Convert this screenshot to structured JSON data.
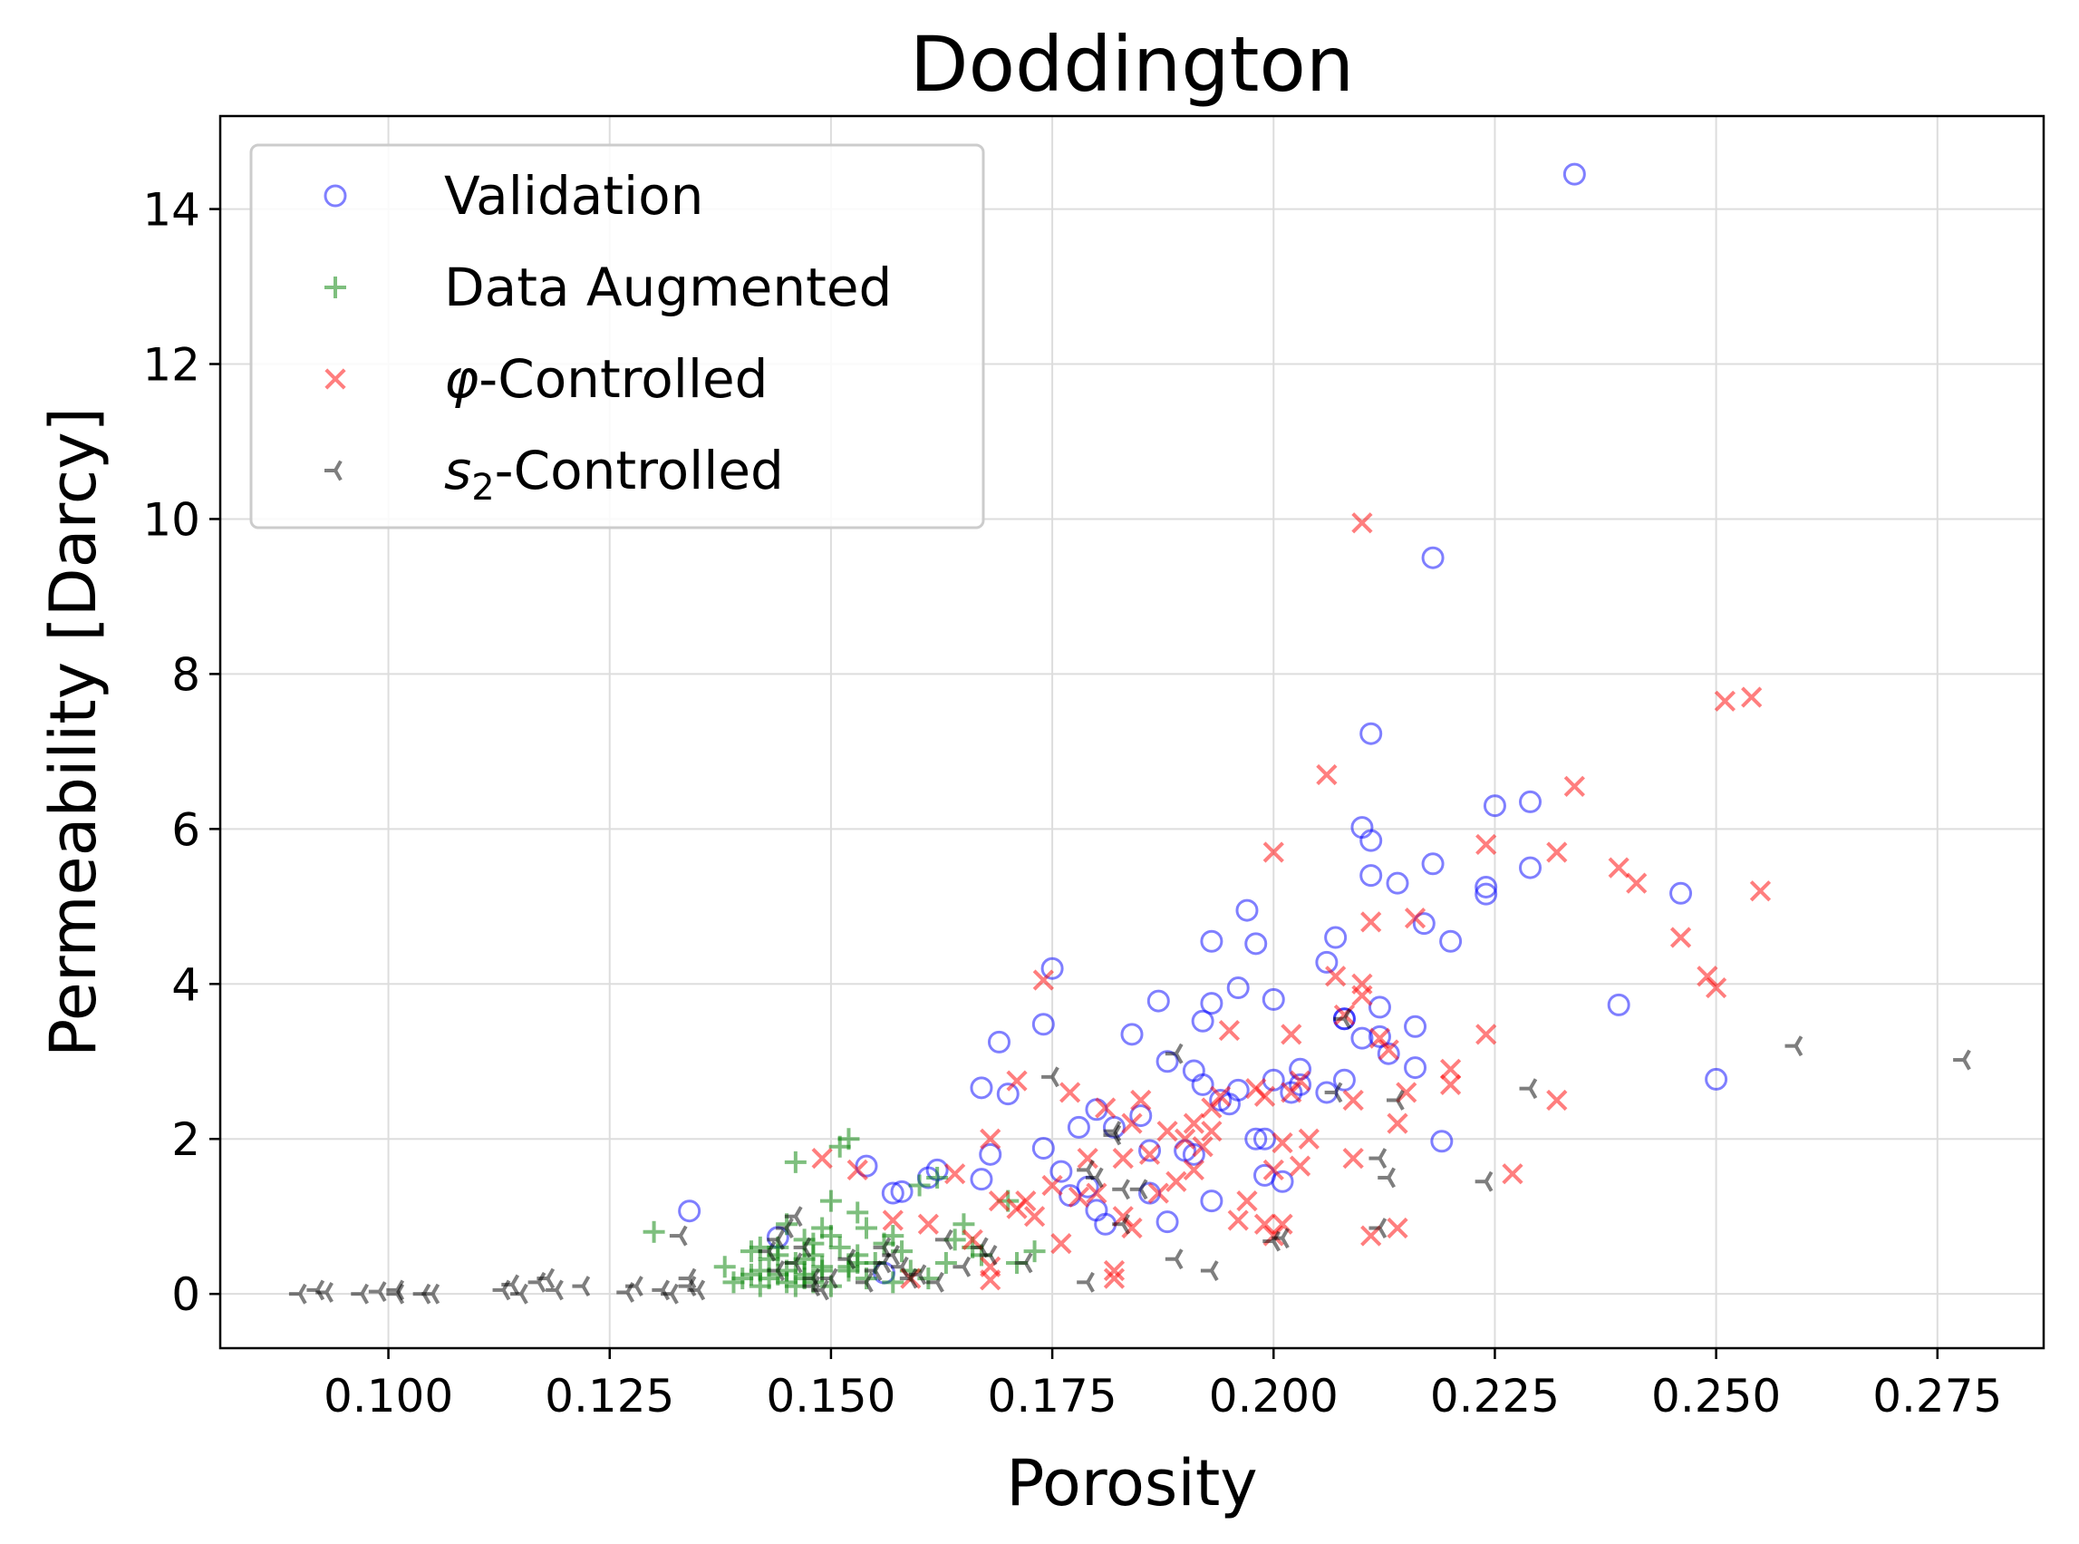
{
  "chart_data": {
    "type": "scatter",
    "title": "Doddington",
    "xlabel": "Porosity",
    "ylabel": "Permeability [Darcy]",
    "xlim": [
      0.081,
      0.287
    ],
    "ylim": [
      -0.7,
      15.2
    ],
    "x_ticks": [
      0.1,
      0.125,
      0.15,
      0.175,
      0.2,
      0.225,
      0.25,
      0.275
    ],
    "x_tick_labels": [
      "0.100",
      "0.125",
      "0.150",
      "0.175",
      "0.200",
      "0.225",
      "0.250",
      "0.275"
    ],
    "y_ticks": [
      0,
      2,
      4,
      6,
      8,
      10,
      12,
      14
    ],
    "y_tick_labels": [
      "0",
      "2",
      "4",
      "6",
      "8",
      "10",
      "12",
      "14"
    ],
    "grid": true,
    "legend_position": "top-left",
    "series": [
      {
        "name": "Validation",
        "legend_prefix": "",
        "legend_sub": "",
        "legend_suffix": "Validation",
        "marker": "circle-open",
        "color": "#0000ff",
        "x": [
          0.134,
          0.144,
          0.154,
          0.156,
          0.157,
          0.158,
          0.161,
          0.162,
          0.167,
          0.167,
          0.168,
          0.169,
          0.17,
          0.174,
          0.174,
          0.175,
          0.176,
          0.177,
          0.178,
          0.179,
          0.18,
          0.18,
          0.181,
          0.182,
          0.184,
          0.185,
          0.186,
          0.186,
          0.187,
          0.188,
          0.188,
          0.19,
          0.191,
          0.191,
          0.192,
          0.192,
          0.193,
          0.193,
          0.193,
          0.194,
          0.195,
          0.196,
          0.196,
          0.197,
          0.198,
          0.198,
          0.199,
          0.199,
          0.2,
          0.2,
          0.201,
          0.202,
          0.203,
          0.203,
          0.206,
          0.206,
          0.207,
          0.208,
          0.208,
          0.208,
          0.21,
          0.21,
          0.211,
          0.211,
          0.211,
          0.212,
          0.212,
          0.213,
          0.214,
          0.216,
          0.216,
          0.217,
          0.218,
          0.218,
          0.219,
          0.22,
          0.224,
          0.224,
          0.225,
          0.229,
          0.229,
          0.234,
          0.239,
          0.246,
          0.25
        ],
        "y": [
          1.07,
          0.73,
          1.65,
          0.27,
          1.3,
          1.32,
          1.5,
          1.6,
          1.48,
          2.66,
          1.8,
          3.25,
          2.58,
          3.48,
          1.88,
          4.2,
          1.58,
          1.27,
          2.15,
          1.38,
          1.08,
          2.38,
          0.9,
          2.15,
          3.35,
          2.3,
          1.3,
          1.85,
          3.78,
          0.93,
          3.0,
          1.85,
          1.8,
          2.88,
          2.7,
          3.52,
          1.2,
          4.55,
          3.75,
          2.5,
          2.45,
          2.63,
          3.95,
          4.95,
          2.0,
          4.52,
          2.0,
          1.53,
          3.8,
          2.76,
          1.45,
          2.6,
          2.7,
          2.9,
          2.6,
          4.28,
          4.6,
          3.55,
          3.55,
          2.76,
          6.02,
          3.3,
          5.4,
          5.85,
          7.23,
          3.32,
          3.7,
          3.1,
          5.3,
          2.92,
          3.45,
          4.78,
          5.55,
          9.5,
          1.97,
          4.55,
          5.16,
          5.25,
          6.3,
          5.5,
          6.35,
          14.45,
          3.73,
          5.17,
          2.77
        ]
      },
      {
        "name": "Data Augmented",
        "legend_prefix": "",
        "legend_sub": "",
        "legend_suffix": "Data Augmented",
        "marker": "plus",
        "color": "#008000",
        "x": [
          0.13,
          0.138,
          0.14,
          0.141,
          0.142,
          0.142,
          0.143,
          0.144,
          0.144,
          0.145,
          0.145,
          0.146,
          0.146,
          0.147,
          0.147,
          0.148,
          0.148,
          0.149,
          0.149,
          0.15,
          0.15,
          0.151,
          0.151,
          0.152,
          0.152,
          0.153,
          0.153,
          0.154,
          0.154,
          0.155,
          0.156,
          0.157,
          0.157,
          0.158,
          0.159,
          0.16,
          0.161,
          0.162,
          0.163,
          0.164,
          0.165,
          0.166,
          0.167,
          0.17,
          0.171,
          0.173,
          0.145,
          0.147,
          0.143,
          0.139,
          0.148,
          0.152,
          0.146,
          0.141,
          0.144,
          0.15,
          0.153,
          0.149,
          0.142,
          0.147
        ],
        "y": [
          0.8,
          0.35,
          0.2,
          0.55,
          0.3,
          0.1,
          0.45,
          0.6,
          0.25,
          0.9,
          0.15,
          0.4,
          1.7,
          0.7,
          0.25,
          0.5,
          0.15,
          0.85,
          0.35,
          1.2,
          0.1,
          0.6,
          1.9,
          0.3,
          2.0,
          0.5,
          1.05,
          0.2,
          0.85,
          0.4,
          0.65,
          0.15,
          0.75,
          0.55,
          0.3,
          1.4,
          0.2,
          1.5,
          0.4,
          0.7,
          0.9,
          0.6,
          0.5,
          1.2,
          0.4,
          0.55,
          0.3,
          0.45,
          0.2,
          0.15,
          0.65,
          0.35,
          0.1,
          0.25,
          0.5,
          0.75,
          0.4,
          0.3,
          0.6,
          0.2
        ]
      },
      {
        "name": "φ-Controlled",
        "legend_prefix": "φ",
        "legend_sub": "",
        "legend_suffix": "-Controlled",
        "marker": "x",
        "color": "#ff0000",
        "x": [
          0.149,
          0.153,
          0.157,
          0.159,
          0.161,
          0.164,
          0.166,
          0.168,
          0.168,
          0.168,
          0.169,
          0.171,
          0.171,
          0.172,
          0.173,
          0.174,
          0.175,
          0.176,
          0.177,
          0.178,
          0.179,
          0.18,
          0.181,
          0.182,
          0.182,
          0.183,
          0.183,
          0.184,
          0.184,
          0.185,
          0.186,
          0.187,
          0.188,
          0.189,
          0.19,
          0.191,
          0.191,
          0.192,
          0.193,
          0.193,
          0.194,
          0.195,
          0.196,
          0.197,
          0.198,
          0.199,
          0.199,
          0.2,
          0.2,
          0.2,
          0.201,
          0.201,
          0.202,
          0.202,
          0.203,
          0.203,
          0.204,
          0.206,
          0.207,
          0.208,
          0.209,
          0.209,
          0.21,
          0.21,
          0.21,
          0.211,
          0.211,
          0.212,
          0.213,
          0.214,
          0.214,
          0.215,
          0.216,
          0.22,
          0.22,
          0.224,
          0.224,
          0.227,
          0.232,
          0.232,
          0.234,
          0.239,
          0.241,
          0.246,
          0.249,
          0.25,
          0.251,
          0.254,
          0.255
        ],
        "y": [
          1.75,
          1.6,
          0.95,
          0.2,
          0.9,
          1.55,
          0.7,
          2.0,
          0.35,
          0.18,
          1.2,
          1.1,
          2.75,
          1.2,
          1.0,
          4.05,
          1.4,
          0.65,
          2.6,
          1.25,
          1.75,
          1.3,
          2.4,
          0.3,
          0.2,
          1.75,
          1.0,
          0.85,
          2.2,
          2.5,
          1.8,
          1.3,
          2.1,
          1.45,
          2.0,
          1.6,
          2.2,
          1.9,
          2.4,
          2.1,
          2.55,
          3.4,
          0.95,
          1.2,
          2.65,
          0.9,
          2.55,
          0.75,
          1.6,
          5.7,
          0.9,
          1.95,
          2.6,
          3.35,
          1.65,
          2.75,
          2.0,
          6.7,
          4.1,
          3.6,
          2.5,
          1.75,
          3.85,
          4.0,
          9.95,
          0.75,
          4.8,
          3.3,
          3.15,
          2.2,
          0.85,
          2.6,
          4.85,
          2.9,
          2.7,
          3.35,
          5.8,
          1.55,
          2.5,
          5.7,
          6.55,
          5.5,
          5.3,
          4.6,
          4.1,
          3.95,
          7.65,
          7.7,
          5.2
        ]
      },
      {
        "name": "s2-Controlled",
        "legend_prefix": "s",
        "legend_sub": "2",
        "legend_suffix": "-Controlled",
        "marker": "tri-left",
        "color": "#000000",
        "x": [
          0.09,
          0.092,
          0.093,
          0.097,
          0.099,
          0.101,
          0.104,
          0.105,
          0.113,
          0.114,
          0.117,
          0.118,
          0.119,
          0.122,
          0.127,
          0.128,
          0.131,
          0.132,
          0.134,
          0.134,
          0.135,
          0.143,
          0.144,
          0.145,
          0.146,
          0.146,
          0.147,
          0.148,
          0.149,
          0.15,
          0.152,
          0.154,
          0.155,
          0.156,
          0.157,
          0.158,
          0.159,
          0.16,
          0.162,
          0.163,
          0.165,
          0.167,
          0.168,
          0.172,
          0.175,
          0.179,
          0.179,
          0.18,
          0.182,
          0.182,
          0.183,
          0.183,
          0.185,
          0.189,
          0.189,
          0.193,
          0.2,
          0.201,
          0.207,
          0.208,
          0.212,
          0.212,
          0.213,
          0.214,
          0.224,
          0.229,
          0.259,
          0.278,
          0.144,
          0.148,
          0.156,
          0.133,
          0.115,
          0.101
        ],
        "y": [
          0.0,
          0.05,
          0.02,
          0.0,
          0.03,
          0.0,
          0.0,
          0.0,
          0.05,
          0.12,
          0.15,
          0.2,
          0.05,
          0.1,
          0.02,
          0.1,
          0.05,
          0.0,
          0.2,
          0.1,
          0.05,
          0.55,
          0.7,
          0.85,
          0.4,
          1.0,
          0.6,
          0.1,
          0.05,
          0.2,
          0.45,
          0.15,
          0.3,
          0.4,
          0.5,
          0.35,
          0.2,
          0.25,
          0.15,
          0.7,
          0.35,
          0.6,
          0.5,
          0.4,
          2.8,
          1.6,
          0.15,
          1.5,
          2.05,
          2.1,
          1.35,
          0.9,
          1.35,
          0.45,
          3.1,
          0.3,
          0.68,
          0.72,
          2.6,
          3.55,
          1.75,
          0.85,
          1.5,
          2.5,
          1.45,
          2.65,
          3.2,
          3.02,
          0.3,
          0.2,
          0.6,
          0.75,
          0.0,
          0.05
        ]
      }
    ]
  }
}
